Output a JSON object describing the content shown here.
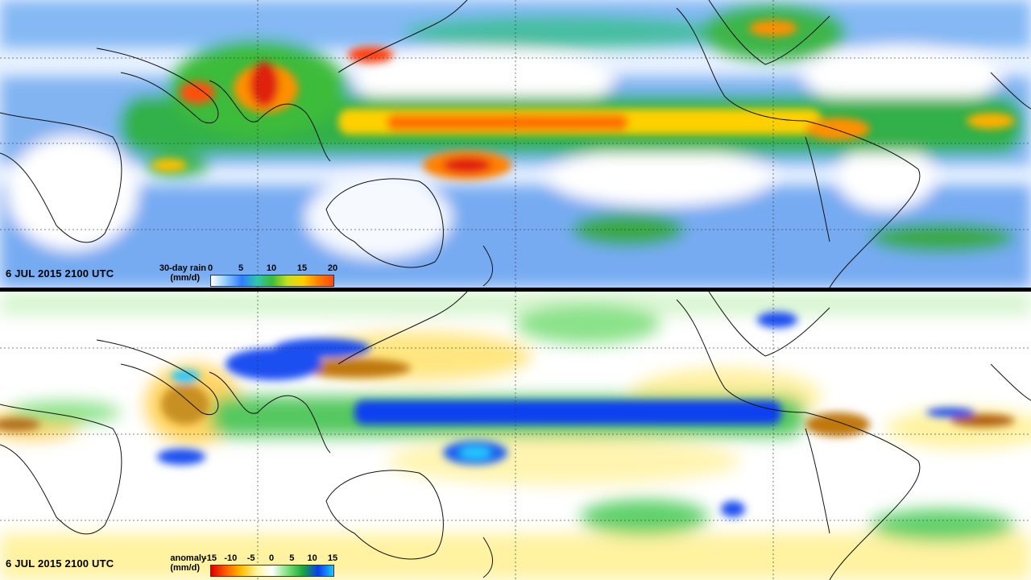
{
  "top_panel": {
    "timestamp": "6 JUL 2015 2100 UTC",
    "legend": {
      "title_line1": "30-day rain",
      "title_line2": "(mm/d)",
      "ticks": [
        "0",
        "5",
        "10",
        "15",
        "20"
      ],
      "gradient": [
        "#ffffff",
        "#8ec8ff",
        "#2f7dff",
        "#2ec6b0",
        "#3dbb3a",
        "#c8e020",
        "#ffd000",
        "#ff8000",
        "#ff4a10"
      ]
    }
  },
  "bottom_panel": {
    "timestamp": "6 JUL 2015 2100 UTC",
    "legend": {
      "title_line1": "anomaly",
      "title_line2": "(mm/d)",
      "ticks": [
        "-15",
        "-10",
        "-5",
        "0",
        "5",
        "10",
        "15"
      ],
      "gradient": [
        "#e00000",
        "#ff6000",
        "#ffc000",
        "#fff6a0",
        "#ffffff",
        "#7ee07a",
        "#1aa83a",
        "#0b3cf0",
        "#18c8ff"
      ]
    }
  }
}
